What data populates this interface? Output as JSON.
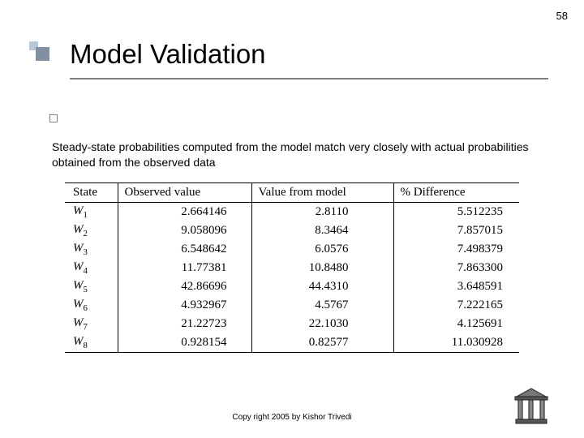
{
  "page_number": "58",
  "title": "Model Validation",
  "description": "Steady-state probabilities computed from the model match very closely with actual probabilities obtained from the observed data",
  "table": {
    "headers": {
      "state": "State",
      "observed": "Observed value",
      "model": "Value from model",
      "diff": "% Difference"
    },
    "rows": [
      {
        "state_base": "W",
        "state_sub": "1",
        "observed": "2.664146",
        "model": "2.8110",
        "diff": "5.512235"
      },
      {
        "state_base": "W",
        "state_sub": "2",
        "observed": "9.058096",
        "model": "8.3464",
        "diff": "7.857015"
      },
      {
        "state_base": "W",
        "state_sub": "3",
        "observed": "6.548642",
        "model": "6.0576",
        "diff": "7.498379"
      },
      {
        "state_base": "W",
        "state_sub": "4",
        "observed": "11.77381",
        "model": "10.8480",
        "diff": "7.863300"
      },
      {
        "state_base": "W",
        "state_sub": "5",
        "observed": "42.86696",
        "model": "44.4310",
        "diff": "3.648591"
      },
      {
        "state_base": "W",
        "state_sub": "6",
        "observed": "4.932967",
        "model": "4.5767",
        "diff": "7.222165"
      },
      {
        "state_base": "W",
        "state_sub": "7",
        "observed": "21.22723",
        "model": "22.1030",
        "diff": "4.125691"
      },
      {
        "state_base": "W",
        "state_sub": "8",
        "observed": "0.928154",
        "model": "0.82577",
        "diff": "11.030928"
      }
    ]
  },
  "footer": "Copy right 2005 by Kishor Trivedi",
  "colors": {
    "deco_small": "#b9c8d8",
    "deco_large": "#8090a0",
    "rule": "#808080"
  }
}
